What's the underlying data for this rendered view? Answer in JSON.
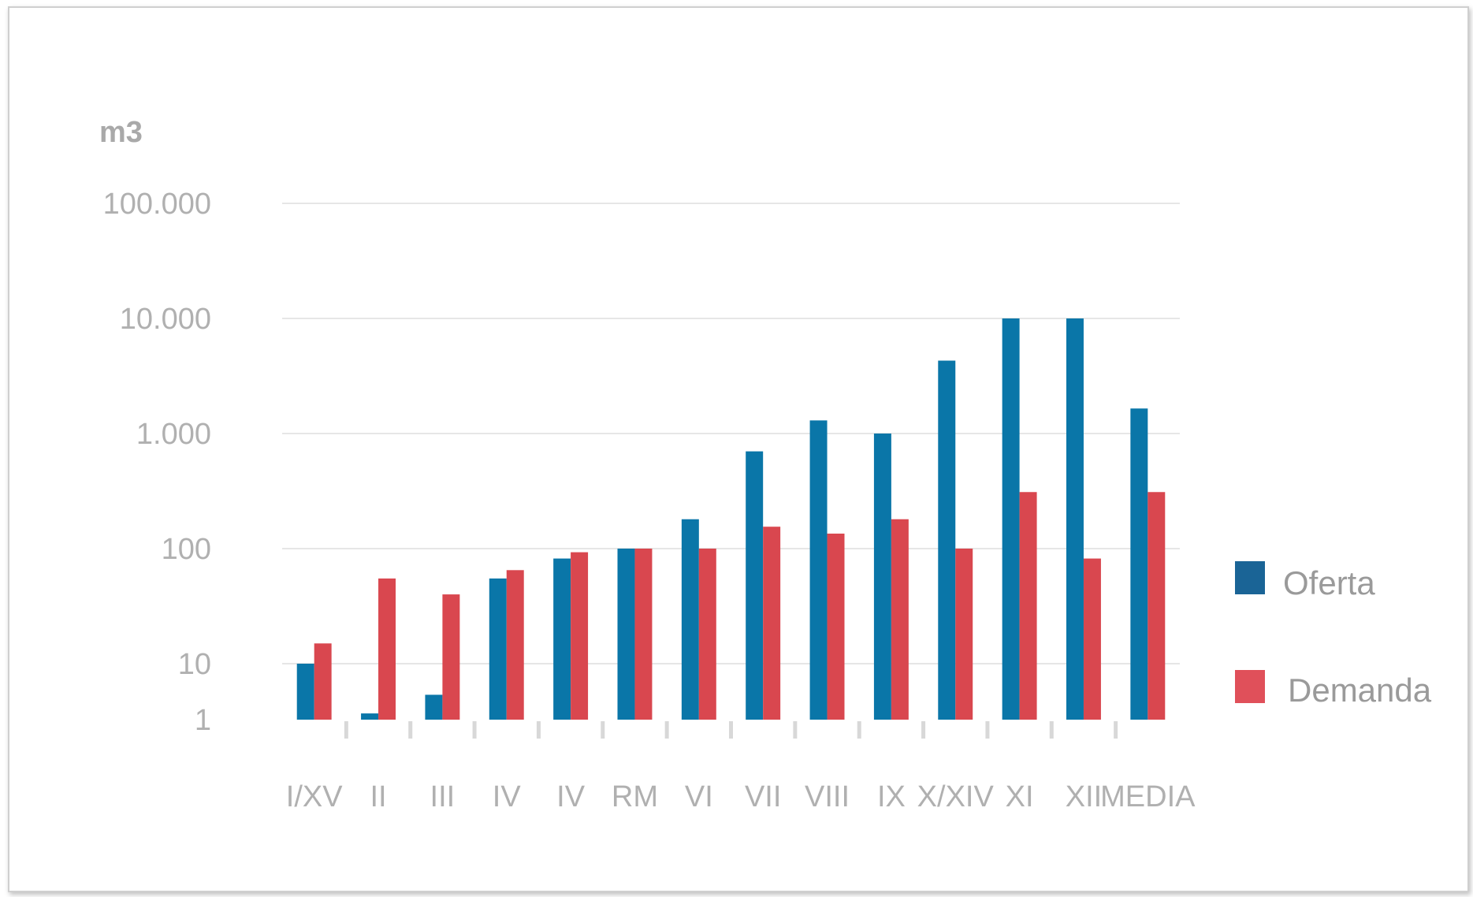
{
  "chart_data": {
    "type": "bar",
    "scale": "log",
    "ylabel": "m3",
    "ylim": [
      1,
      100000
    ],
    "yticks": [
      {
        "value": 1,
        "label": "1"
      },
      {
        "value": 10,
        "label": "10"
      },
      {
        "value": 100,
        "label": "100"
      },
      {
        "value": 1000,
        "label": "1.000"
      },
      {
        "value": 10000,
        "label": "10.000"
      },
      {
        "value": 100000,
        "label": "100.000"
      }
    ],
    "categories": [
      "I/XV",
      "II",
      "III",
      "IV",
      "IV",
      "RM",
      "VI",
      "VII",
      "VIII",
      "IX",
      "X/XIV",
      "XI",
      "XII",
      "MEDIA"
    ],
    "series": [
      {
        "name": "Oferta",
        "color": "#0a76a8",
        "values": [
          10,
          2,
          5,
          55,
          82,
          100,
          180,
          700,
          1300,
          1000,
          4300,
          10000,
          10000,
          1650
        ]
      },
      {
        "name": "Demanda",
        "color": "#d9474f",
        "values": [
          15,
          55,
          40,
          65,
          93,
          100,
          100,
          155,
          135,
          180,
          100,
          310,
          82,
          310
        ]
      }
    ],
    "grid": true,
    "legend": "right"
  }
}
